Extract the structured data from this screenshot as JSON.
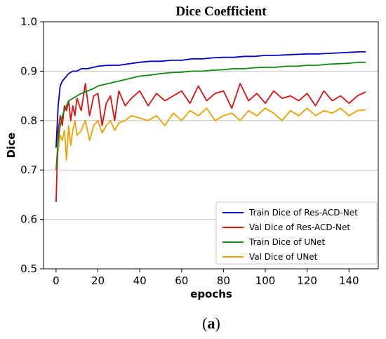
{
  "chart_data": {
    "type": "line",
    "title": "Dice Coefficient",
    "xlabel": "epochs",
    "ylabel": "Dice",
    "xlim": [
      -6,
      154
    ],
    "ylim": [
      0.5,
      1.0
    ],
    "xticks": [
      0,
      20,
      40,
      60,
      80,
      100,
      120,
      140
    ],
    "yticks": [
      0.5,
      0.6,
      0.7,
      0.8,
      0.9,
      1.0
    ],
    "ytick_labels": [
      "0.5",
      "0.6",
      "0.7",
      "0.8",
      "0.9",
      "1.0"
    ],
    "grid": "horizontal",
    "legend_position": "lower-right",
    "series": [
      {
        "name": "Train Dice of Res-ACD-Net",
        "color": "#0000cc",
        "x": [
          0,
          1,
          2,
          3,
          4,
          5,
          6,
          8,
          10,
          12,
          15,
          18,
          20,
          25,
          30,
          35,
          40,
          45,
          50,
          55,
          60,
          65,
          70,
          75,
          80,
          85,
          90,
          95,
          100,
          105,
          110,
          115,
          120,
          125,
          130,
          135,
          140,
          145,
          148
        ],
        "values": [
          0.745,
          0.83,
          0.87,
          0.88,
          0.885,
          0.89,
          0.895,
          0.9,
          0.9,
          0.905,
          0.905,
          0.908,
          0.91,
          0.912,
          0.912,
          0.915,
          0.918,
          0.92,
          0.92,
          0.922,
          0.922,
          0.925,
          0.925,
          0.927,
          0.928,
          0.928,
          0.93,
          0.93,
          0.932,
          0.932,
          0.933,
          0.934,
          0.935,
          0.935,
          0.936,
          0.937,
          0.938,
          0.939,
          0.939
        ]
      },
      {
        "name": "Val Dice of Res-ACD-Net",
        "color": "#dd1111",
        "x": [
          0,
          1,
          2,
          3,
          4,
          5,
          6,
          7,
          8,
          9,
          10,
          12,
          14,
          16,
          18,
          20,
          22,
          24,
          26,
          28,
          30,
          33,
          36,
          40,
          44,
          48,
          52,
          56,
          60,
          64,
          68,
          72,
          76,
          80,
          84,
          88,
          92,
          96,
          100,
          104,
          108,
          112,
          116,
          120,
          124,
          128,
          132,
          136,
          140,
          144,
          148
        ],
        "values": [
          0.635,
          0.78,
          0.81,
          0.79,
          0.83,
          0.82,
          0.84,
          0.8,
          0.83,
          0.81,
          0.845,
          0.82,
          0.875,
          0.81,
          0.85,
          0.855,
          0.79,
          0.835,
          0.85,
          0.8,
          0.86,
          0.83,
          0.845,
          0.86,
          0.83,
          0.855,
          0.84,
          0.85,
          0.86,
          0.835,
          0.87,
          0.84,
          0.855,
          0.86,
          0.825,
          0.875,
          0.84,
          0.855,
          0.835,
          0.86,
          0.845,
          0.85,
          0.84,
          0.855,
          0.83,
          0.86,
          0.84,
          0.85,
          0.835,
          0.85,
          0.858
        ]
      },
      {
        "name": "Train Dice of UNet",
        "color": "#118811",
        "x": [
          0,
          1,
          2,
          3,
          4,
          5,
          6,
          8,
          10,
          12,
          15,
          18,
          20,
          25,
          30,
          35,
          40,
          45,
          50,
          55,
          60,
          65,
          70,
          75,
          80,
          85,
          90,
          95,
          100,
          105,
          110,
          115,
          120,
          125,
          130,
          135,
          140,
          145,
          148
        ],
        "values": [
          0.7,
          0.76,
          0.79,
          0.81,
          0.82,
          0.83,
          0.84,
          0.845,
          0.85,
          0.855,
          0.86,
          0.865,
          0.87,
          0.875,
          0.88,
          0.885,
          0.89,
          0.892,
          0.895,
          0.897,
          0.898,
          0.9,
          0.9,
          0.902,
          0.903,
          0.905,
          0.905,
          0.907,
          0.908,
          0.908,
          0.91,
          0.91,
          0.912,
          0.912,
          0.914,
          0.915,
          0.916,
          0.918,
          0.918
        ]
      },
      {
        "name": "Val Dice of UNet",
        "color": "#f0a000",
        "x": [
          0,
          1,
          2,
          3,
          4,
          5,
          6,
          7,
          8,
          9,
          10,
          12,
          14,
          16,
          18,
          20,
          22,
          24,
          26,
          28,
          30,
          33,
          36,
          40,
          44,
          48,
          52,
          56,
          60,
          64,
          68,
          72,
          76,
          80,
          84,
          88,
          92,
          96,
          100,
          104,
          108,
          112,
          116,
          120,
          124,
          128,
          132,
          136,
          140,
          144,
          148
        ],
        "values": [
          0.7,
          0.74,
          0.77,
          0.76,
          0.78,
          0.72,
          0.79,
          0.75,
          0.78,
          0.8,
          0.77,
          0.78,
          0.8,
          0.76,
          0.79,
          0.8,
          0.775,
          0.79,
          0.8,
          0.78,
          0.795,
          0.8,
          0.81,
          0.805,
          0.8,
          0.81,
          0.79,
          0.815,
          0.8,
          0.82,
          0.81,
          0.825,
          0.8,
          0.81,
          0.815,
          0.8,
          0.82,
          0.81,
          0.825,
          0.815,
          0.8,
          0.82,
          0.81,
          0.825,
          0.81,
          0.82,
          0.815,
          0.825,
          0.81,
          0.82,
          0.822
        ]
      }
    ]
  },
  "caption": {
    "open": "(",
    "letter": "a",
    "close": ")"
  }
}
